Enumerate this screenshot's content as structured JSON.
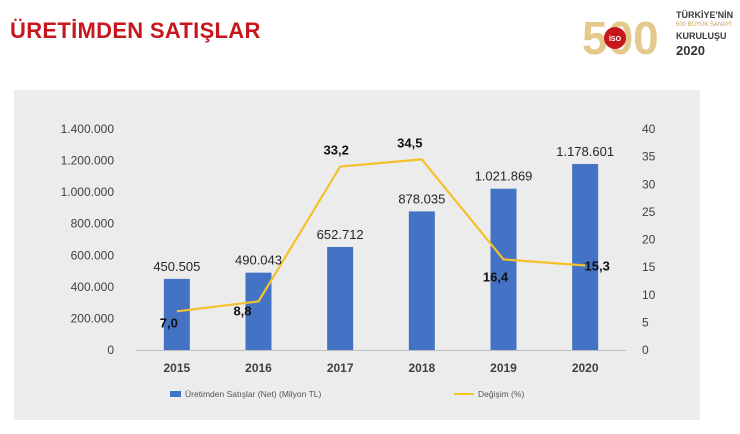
{
  "header": {
    "title": "ÜRETİMDEN SATIŞLAR"
  },
  "logo": {
    "numeral": "500",
    "badge": "İSO",
    "line1": "TÜRKİYE'NİN",
    "line2": "500 BÜYÜK SANAYİ",
    "line3": "KURULUŞU",
    "year": "2020"
  },
  "chart_data": {
    "type": "bar+line",
    "categories": [
      "2015",
      "2016",
      "2017",
      "2018",
      "2019",
      "2020"
    ],
    "series": [
      {
        "name": "Üretimden Satışlar (Net) (Milyon TL)",
        "type": "bar",
        "axis": "left",
        "color": "#4472c4",
        "values": [
          450505,
          490043,
          652712,
          878035,
          1021869,
          1178601
        ],
        "labels": [
          "450.505",
          "490.043",
          "652.712",
          "878.035",
          "1.021.869",
          "1.178.601"
        ]
      },
      {
        "name": "Değişim (%)",
        "type": "line",
        "axis": "right",
        "color": "#f5c12b",
        "values": [
          7.0,
          8.8,
          33.2,
          34.5,
          16.4,
          15.3
        ],
        "labels": [
          "7,0",
          "8,8",
          "33,2",
          "34,5",
          "16,4",
          "15,3"
        ]
      }
    ],
    "y_left": {
      "range": [
        0,
        1400000
      ],
      "ticks": [
        "0",
        "200.000",
        "400.000",
        "600.000",
        "800.000",
        "1.000.000",
        "1.200.000",
        "1.400.000"
      ]
    },
    "y_right": {
      "range": [
        0,
        40
      ],
      "ticks": [
        "0",
        "5",
        "10",
        "15",
        "20",
        "25",
        "30",
        "35",
        "40"
      ]
    },
    "grid": false,
    "legend": "bottom"
  }
}
